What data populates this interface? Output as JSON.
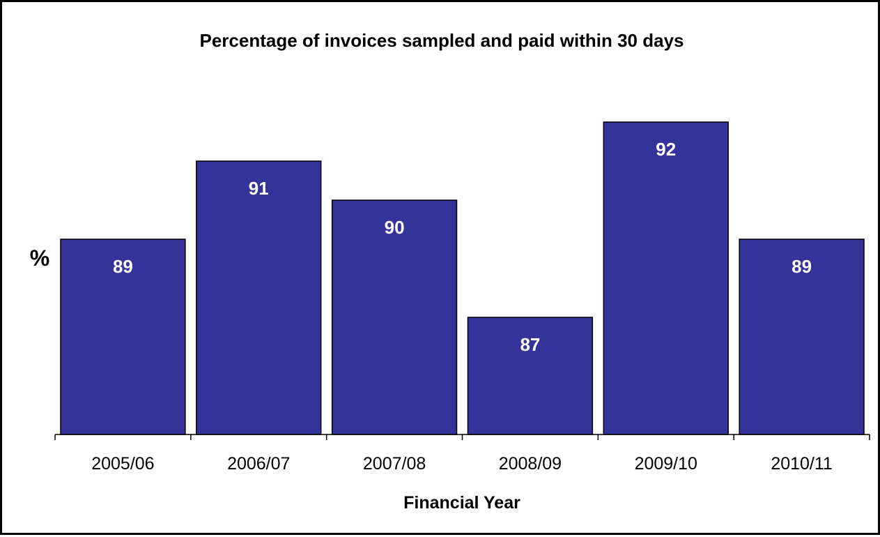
{
  "chart_data": {
    "type": "bar",
    "title": "Percentage of invoices sampled and paid within 30 days",
    "xlabel": "Financial Year",
    "ylabel": "%",
    "categories": [
      "2005/06",
      "2006/07",
      "2007/08",
      "2008/09",
      "2009/10",
      "2010/11"
    ],
    "values": [
      89,
      91,
      90,
      87,
      92,
      89
    ],
    "ylim": [
      84,
      93
    ],
    "bar_color": "#333399",
    "bar_outline_color": "#000000",
    "grid": false,
    "legend": "none",
    "data_labels": "inside-top"
  }
}
